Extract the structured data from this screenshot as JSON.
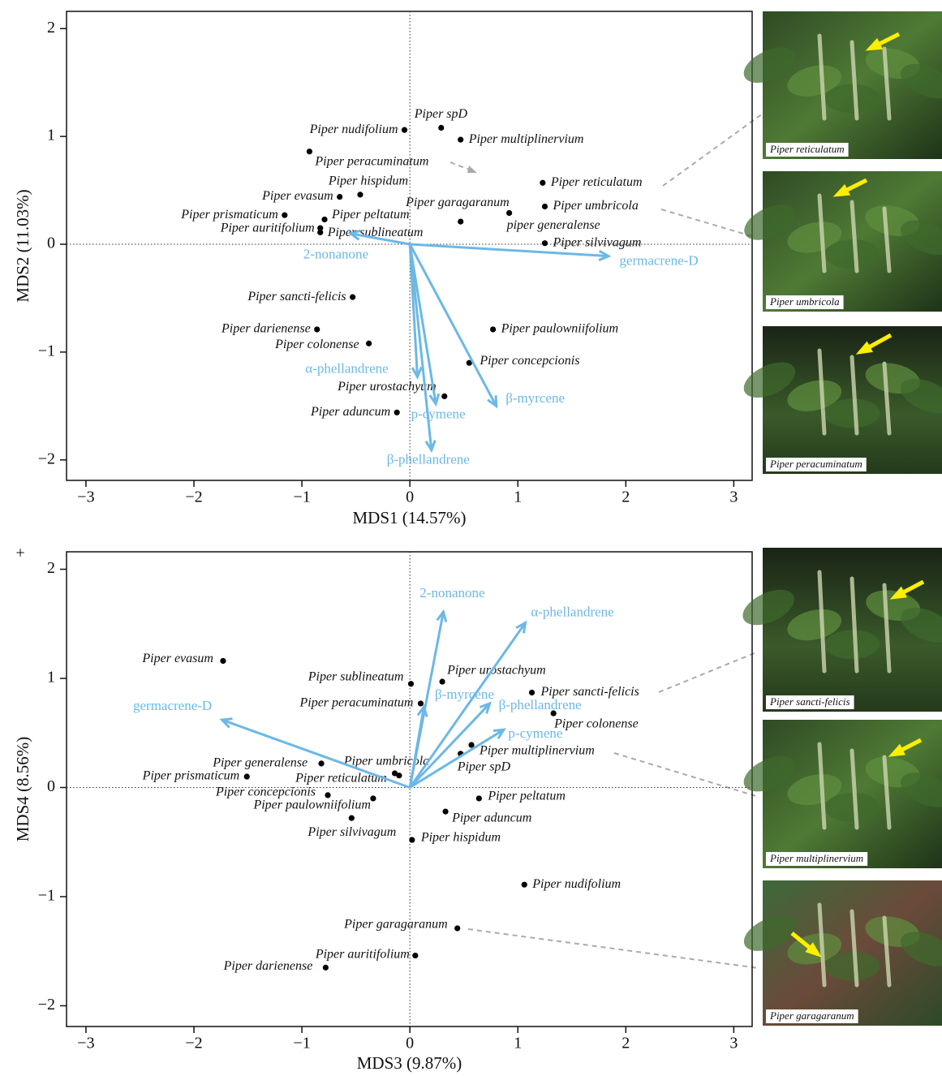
{
  "chart_data": [
    {
      "type": "biplot",
      "x_label": "MDS1 (14.57%)",
      "y_label": "MDS2 (11.03%)",
      "xlim": [
        -3.18,
        3.17
      ],
      "ylim": [
        -2.19,
        2.16
      ],
      "xticks": [
        {
          "value": -3,
          "label": "−3"
        },
        {
          "value": -2,
          "label": "−2"
        },
        {
          "value": -1,
          "label": "−1"
        },
        0,
        1,
        2,
        3
      ],
      "yticks": [
        {
          "value": -2,
          "label": "−2"
        },
        {
          "value": -1,
          "label": "−1"
        },
        0,
        1,
        2
      ],
      "point_color": "#000000",
      "vector_color": "#6cb8e6",
      "labels": [
        "Piper nudifolium",
        "Piper spD",
        "Piper multiplinervium",
        "Piper peracuminatum",
        "Piper reticulatum",
        "Piper umbricola",
        "Piper hispidum",
        "Piper evasum",
        "Piper garagaranum",
        "piper generalense",
        "Piper prismaticum",
        "Piper peltatum",
        "Piper auritifolium",
        "Piper sublineatum",
        "Piper silvivagum",
        "Piper sancti-felicis",
        "Piper darienense",
        "Piper paulowniifolium",
        "Piper colonense",
        "Piper concepcionis",
        "Piper urostachyum",
        "Piper aduncum"
      ],
      "x": [
        -0.05,
        0.29,
        0.47,
        -0.93,
        1.23,
        1.25,
        -0.46,
        -0.65,
        0.47,
        0.92,
        -1.16,
        -0.79,
        -0.83,
        -0.83,
        1.25,
        -0.53,
        -0.86,
        0.77,
        -0.38,
        0.55,
        0.32,
        -0.12
      ],
      "y": [
        1.06,
        1.08,
        0.97,
        0.86,
        0.57,
        0.35,
        0.46,
        0.44,
        0.21,
        0.29,
        0.27,
        0.23,
        0.15,
        0.11,
        0.01,
        -0.49,
        -0.79,
        -0.79,
        -0.92,
        -1.1,
        -1.41,
        -1.56
      ],
      "vectors": {
        "names": [
          "2-nonanone",
          "germacrene-D",
          "α-phellandrene",
          "p-cymene",
          "β-myrcene",
          "β-phellandrene"
        ],
        "x": [
          -0.55,
          1.84,
          0.07,
          0.24,
          0.8,
          0.2
        ],
        "y": [
          0.1,
          -0.11,
          -1.23,
          -1.48,
          -1.5,
          -1.91
        ]
      },
      "photos": [
        "Piper reticulatum",
        "Piper umbricola",
        "Piper peracuminatum"
      ]
    },
    {
      "type": "biplot",
      "corner_text": "+",
      "x_label": "MDS3 (9.87%)",
      "y_label": "MDS4 (8.56%)",
      "xlim": [
        -3.18,
        3.17
      ],
      "ylim": [
        -2.19,
        2.16
      ],
      "xticks": [
        {
          "value": -3,
          "label": "−3"
        },
        {
          "value": -2,
          "label": "−2"
        },
        {
          "value": -1,
          "label": "−1"
        },
        0,
        1,
        2,
        3
      ],
      "yticks": [
        {
          "value": -2,
          "label": "−2"
        },
        {
          "value": -1,
          "label": "−1"
        },
        0,
        1,
        2
      ],
      "point_color": "#000000",
      "vector_color": "#6cb8e6",
      "labels": [
        "Piper evasum",
        "Piper sublineatum",
        "Piper urostachyum",
        "Piper sancti-felicis",
        "Piper peracuminatum",
        "Piper colonense",
        "Piper multiplinervium",
        "Piper spD",
        "Piper generalense",
        "Piper umbricola",
        "Piper reticulatum",
        "Piper prismaticum",
        "Piper concepcionis",
        "Piper paulowniifolium",
        "Piper silvivagum",
        "Piper peltatum",
        "Piper aduncum",
        "Piper hispidum",
        "Piper nudifolium",
        "Piper garagaranum",
        "Piper auritifolium",
        "Piper darienense"
      ],
      "x": [
        -1.73,
        0.01,
        0.3,
        1.13,
        0.1,
        1.33,
        0.57,
        0.47,
        -0.82,
        -0.14,
        -0.1,
        -1.51,
        -0.76,
        -0.34,
        -0.54,
        0.64,
        0.33,
        0.02,
        1.06,
        0.44,
        0.05,
        -0.78
      ],
      "y": [
        1.16,
        0.95,
        0.97,
        0.87,
        0.77,
        0.68,
        0.39,
        0.31,
        0.22,
        0.13,
        0.11,
        0.1,
        -0.07,
        -0.1,
        -0.28,
        -0.1,
        -0.22,
        -0.48,
        -0.89,
        -1.29,
        -1.54,
        -1.65
      ],
      "vectors": {
        "names": [
          "2-nonanone",
          "α-phellandrene",
          "germacrene-D",
          "β-myrcene",
          "β-phellandrene",
          "p-cymene"
        ],
        "x": [
          0.31,
          1.07,
          -1.74,
          0.13,
          0.74,
          0.87
        ],
        "y": [
          1.61,
          1.51,
          0.62,
          0.74,
          0.77,
          0.53
        ]
      },
      "photos": [
        "Piper sancti-felicis",
        "Piper multiplinervium",
        "Piper garagaranum"
      ]
    }
  ]
}
